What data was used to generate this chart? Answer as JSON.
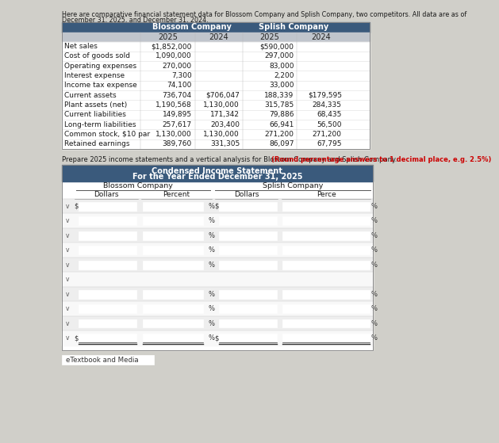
{
  "bg_color": "#d0cfc9",
  "header_text_line1": "Here are comparative financial statement data for Blossom Company and Splish Company, two competitors. All data are as of",
  "header_text_line2": "December 31, 2025, and December 31, 2024.",
  "top_table": {
    "header_bg": "#3a5a7c",
    "row_labels": [
      "Net sales",
      "Cost of goods sold",
      "Operating expenses",
      "Interest expense",
      "Income tax expense",
      "Current assets",
      "Plant assets (net)",
      "Current liabilities",
      "Long-term liabilities",
      "Common stock, $10 par",
      "Retained earnings"
    ],
    "blossom_2025": [
      "$1,852,000",
      "1,090,000",
      "270,000",
      "7,300",
      "74,100",
      "736,704",
      "1,190,568",
      "149,895",
      "257,617",
      "1,130,000",
      "389,760"
    ],
    "blossom_2024": [
      "",
      "",
      "",
      "",
      "",
      "$706,047",
      "1,130,000",
      "171,342",
      "203,400",
      "1,130,000",
      "331,305"
    ],
    "splish_2025": [
      "$590,000",
      "297,000",
      "83,000",
      "2,200",
      "33,000",
      "188,339",
      "315,785",
      "79,886",
      "66,941",
      "271,200",
      "86,097"
    ],
    "splish_2024": [
      "",
      "",
      "",
      "",
      "",
      "$179,595",
      "284,335",
      "68,435",
      "56,500",
      "271,200",
      "67,795"
    ]
  },
  "instruction_normal": "Prepare 2025 income statements and a vertical analysis for Blossom Company and Splish Company.",
  "instruction_bold_red": "(Round percentage answers to 1 decimal place, e.g. 2.5%)",
  "bottom_table": {
    "title_line1": "Condensed Income Statement",
    "title_line2": "For the Year Ended December 31, 2025",
    "header_bg": "#3a5a7c",
    "num_rows": 10,
    "row_has_dollar": [
      true,
      false,
      false,
      false,
      false,
      false,
      false,
      false,
      false,
      true
    ],
    "row_has_percent": [
      true,
      true,
      true,
      true,
      true,
      false,
      true,
      true,
      true,
      true
    ],
    "row_blank": [
      false,
      false,
      false,
      false,
      false,
      true,
      false,
      false,
      false,
      false
    ]
  },
  "etextbook_text": "eTextbook and Media"
}
